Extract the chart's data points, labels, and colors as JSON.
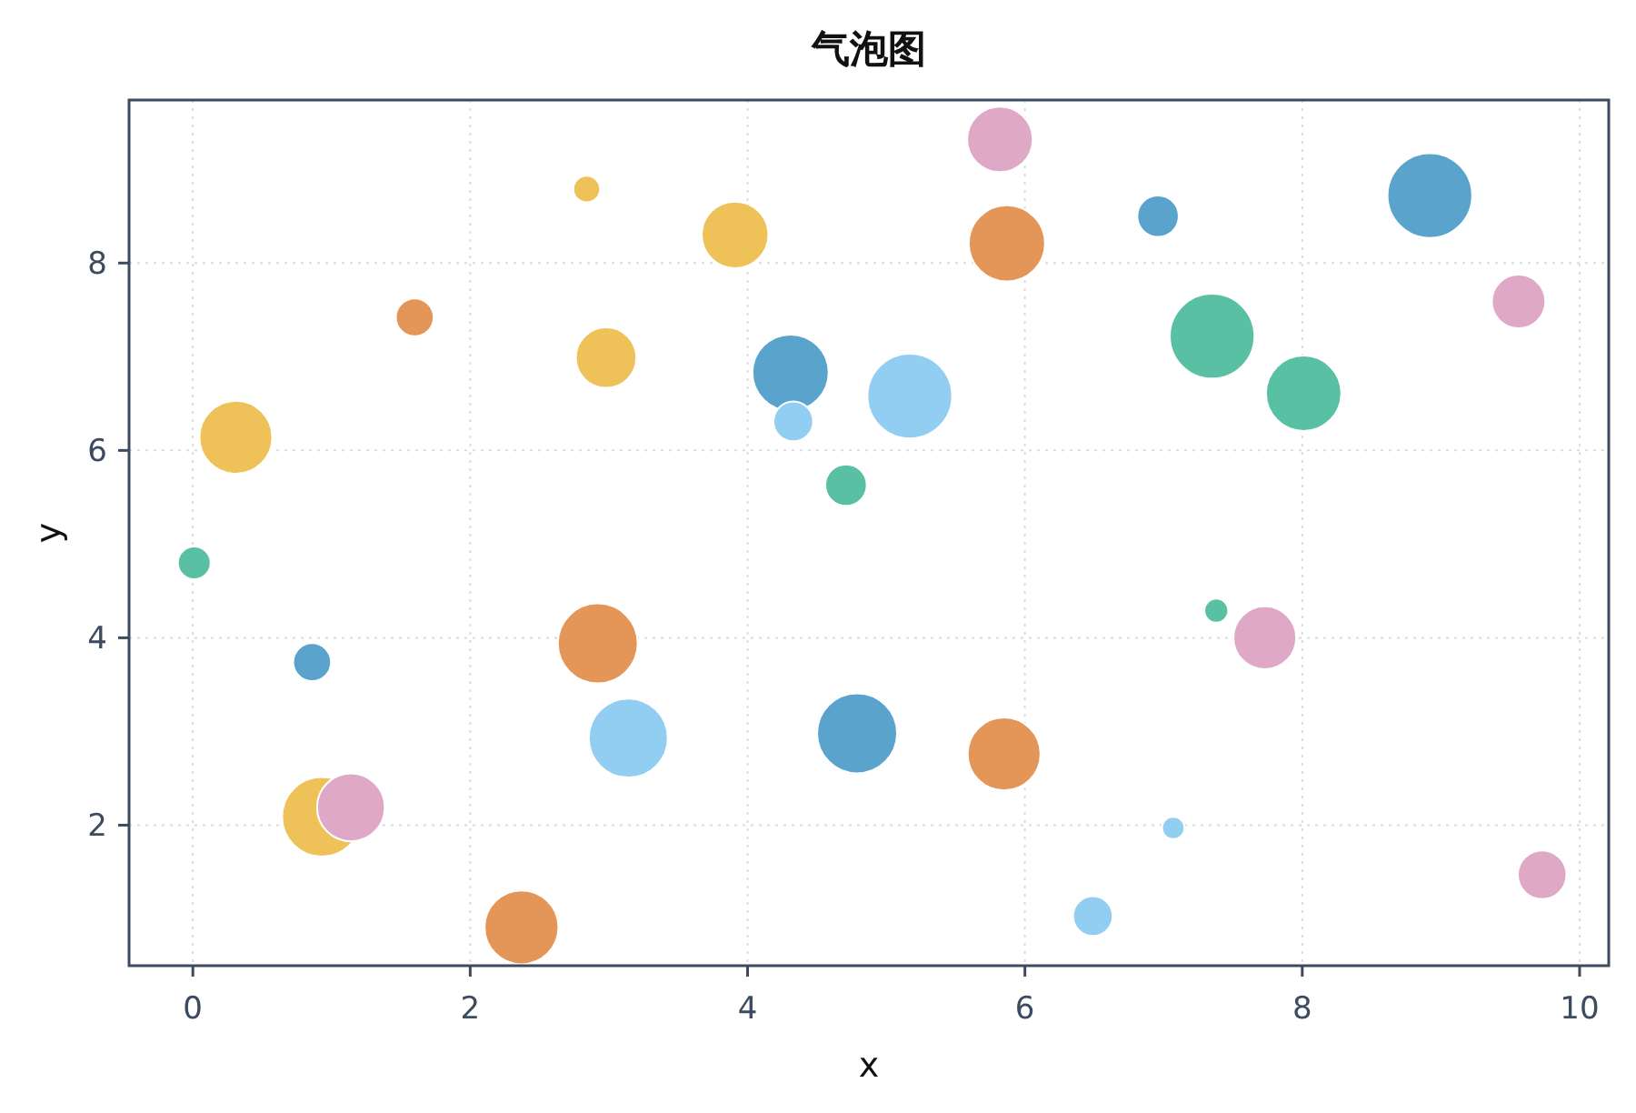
{
  "chart_data": {
    "type": "bubble",
    "title": "气泡图",
    "xlabel": "x",
    "ylabel": "y",
    "marker": "circle",
    "grid": true,
    "xlim": [
      -0.46,
      10.21
    ],
    "ylim": [
      0.5,
      9.74
    ],
    "xticks": [
      0,
      2,
      4,
      6,
      8,
      10
    ],
    "yticks": [
      2,
      4,
      6,
      8
    ],
    "series": [
      {
        "color": "#59a3cd",
        "x": [
          4.31,
          6.96,
          8.92,
          0.86,
          4.79
        ],
        "values": [
          6.83,
          8.5,
          8.72,
          3.74,
          2.98
        ],
        "sizes": [
          0.81,
          0.24,
          1.0,
          0.2,
          0.89
        ]
      },
      {
        "color": "#91cef1",
        "x": [
          4.33,
          5.17,
          3.14,
          7.07,
          6.49
        ],
        "values": [
          6.31,
          6.58,
          2.93,
          1.97,
          1.03
        ],
        "sizes": [
          0.22,
          1.0,
          0.87,
          0.07,
          0.22
        ]
      },
      {
        "color": "#59c0a4",
        "x": [
          4.71,
          7.35,
          8.01,
          0.01,
          7.38
        ],
        "values": [
          5.63,
          7.22,
          6.61,
          4.8,
          4.29
        ],
        "sizes": [
          0.24,
          1.0,
          0.79,
          0.15,
          0.08
        ]
      },
      {
        "color": "#efc159",
        "x": [
          2.84,
          3.91,
          2.98,
          0.31,
          0.93
        ],
        "values": [
          8.79,
          8.3,
          6.99,
          6.14,
          2.09
        ],
        "sizes": [
          0.1,
          0.62,
          0.51,
          0.74,
          0.88
        ]
      },
      {
        "color": "#e49659",
        "x": [
          1.6,
          5.87,
          2.92,
          2.37,
          5.85
        ],
        "values": [
          7.42,
          8.21,
          3.94,
          0.91,
          2.76
        ],
        "sizes": [
          0.2,
          0.81,
          0.89,
          0.76,
          0.74
        ]
      },
      {
        "color": "#dea8c6",
        "x": [
          5.82,
          9.56,
          1.14,
          7.73,
          9.73
        ],
        "values": [
          9.32,
          7.59,
          2.19,
          4.0,
          1.47
        ],
        "sizes": [
          0.6,
          0.4,
          0.64,
          0.55,
          0.33
        ]
      }
    ]
  }
}
